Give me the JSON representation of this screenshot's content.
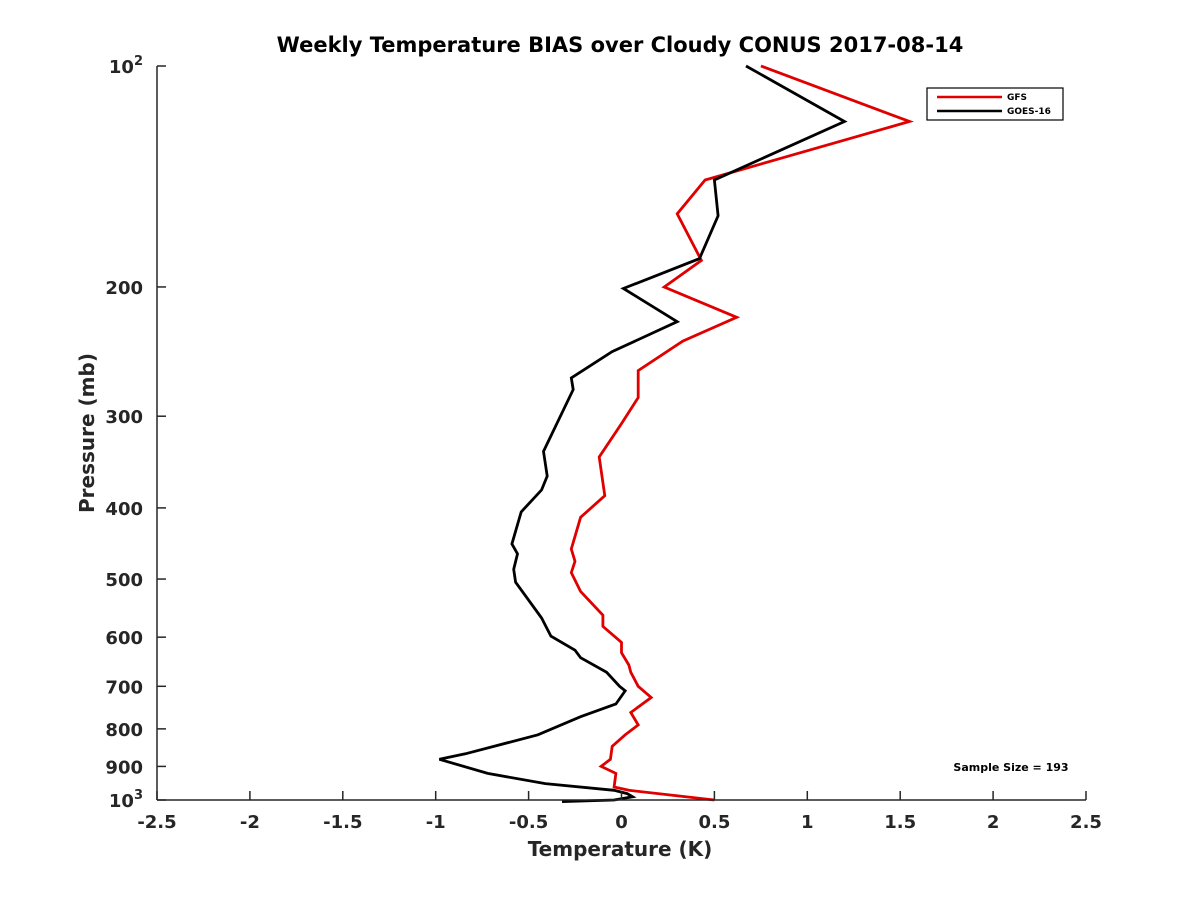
{
  "chart_data": {
    "type": "line",
    "title": "Weekly Temperature BIAS over Cloudy CONUS 2017-08-14",
    "xlabel": "Temperature (K)",
    "ylabel": "Pressure (mb)",
    "xlim": [
      -2.5,
      2.5
    ],
    "ylim": [
      100,
      1000
    ],
    "y_scale": "log",
    "y_reversed": true,
    "grid": false,
    "legend_placement": "top-right",
    "x_ticks": [
      "-2.5",
      "-2",
      "-1.5",
      "-1",
      "-0.5",
      "0",
      "0.5",
      "1",
      "1.5",
      "2",
      "2.5"
    ],
    "x_tick_values": [
      -2.5,
      -2,
      -1.5,
      -1,
      -0.5,
      0,
      0.5,
      1,
      1.5,
      2,
      2.5
    ],
    "y_ticks": [
      {
        "value": 100,
        "base": "10",
        "exp": "2"
      },
      {
        "value": 200,
        "label": "200"
      },
      {
        "value": 300,
        "label": "300"
      },
      {
        "value": 400,
        "label": "400"
      },
      {
        "value": 500,
        "label": "500"
      },
      {
        "value": 600,
        "label": "600"
      },
      {
        "value": 700,
        "label": "700"
      },
      {
        "value": 800,
        "label": "800"
      },
      {
        "value": 900,
        "label": "900"
      },
      {
        "value": 1000,
        "base": "10",
        "exp": "3"
      }
    ],
    "annotation": "Sample Size = 193",
    "series": [
      {
        "name": "GFS",
        "color": "#e00000",
        "points": [
          [
            0.75,
            100
          ],
          [
            1.55,
            119
          ],
          [
            0.45,
            143
          ],
          [
            0.3,
            159
          ],
          [
            0.43,
            184
          ],
          [
            0.23,
            200
          ],
          [
            0.62,
            220
          ],
          [
            0.33,
            237
          ],
          [
            0.09,
            260
          ],
          [
            0.09,
            283
          ],
          [
            0.0,
            307
          ],
          [
            -0.12,
            341
          ],
          [
            -0.09,
            385
          ],
          [
            -0.22,
            412
          ],
          [
            -0.27,
            455
          ],
          [
            -0.25,
            473
          ],
          [
            -0.27,
            490
          ],
          [
            -0.22,
            520
          ],
          [
            -0.1,
            560
          ],
          [
            -0.1,
            580
          ],
          [
            0.0,
            610
          ],
          [
            0.0,
            630
          ],
          [
            0.04,
            655
          ],
          [
            0.05,
            670
          ],
          [
            0.09,
            700
          ],
          [
            0.16,
            725
          ],
          [
            0.05,
            760
          ],
          [
            0.09,
            790
          ],
          [
            0.02,
            815
          ],
          [
            -0.05,
            845
          ],
          [
            -0.06,
            880
          ],
          [
            -0.11,
            900
          ],
          [
            -0.03,
            920
          ],
          [
            -0.04,
            960
          ],
          [
            0.04,
            970
          ],
          [
            0.5,
            1000
          ]
        ]
      },
      {
        "name": "GOES-16",
        "color": "#000000",
        "points": [
          [
            0.67,
            100
          ],
          [
            1.2,
            119
          ],
          [
            0.5,
            143
          ],
          [
            0.52,
            160
          ],
          [
            0.42,
            183
          ],
          [
            0.01,
            201
          ],
          [
            0.3,
            223
          ],
          [
            -0.05,
            245
          ],
          [
            -0.27,
            266
          ],
          [
            -0.26,
            276
          ],
          [
            -0.42,
            335
          ],
          [
            -0.4,
            362
          ],
          [
            -0.43,
            378
          ],
          [
            -0.54,
            405
          ],
          [
            -0.59,
            448
          ],
          [
            -0.56,
            462
          ],
          [
            -0.58,
            485
          ],
          [
            -0.57,
            505
          ],
          [
            -0.43,
            565
          ],
          [
            -0.38,
            598
          ],
          [
            -0.25,
            625
          ],
          [
            -0.22,
            640
          ],
          [
            -0.08,
            670
          ],
          [
            -0.01,
            700
          ],
          [
            0.02,
            710
          ],
          [
            -0.03,
            740
          ],
          [
            -0.22,
            770
          ],
          [
            -0.45,
            815
          ],
          [
            -0.84,
            865
          ],
          [
            -0.98,
            880
          ],
          [
            -0.72,
            920
          ],
          [
            -0.41,
            950
          ],
          [
            -0.04,
            970
          ],
          [
            0.03,
            980
          ],
          [
            0.06,
            990
          ],
          [
            -0.04,
            1000
          ],
          [
            -0.32,
            1005
          ]
        ]
      }
    ]
  }
}
